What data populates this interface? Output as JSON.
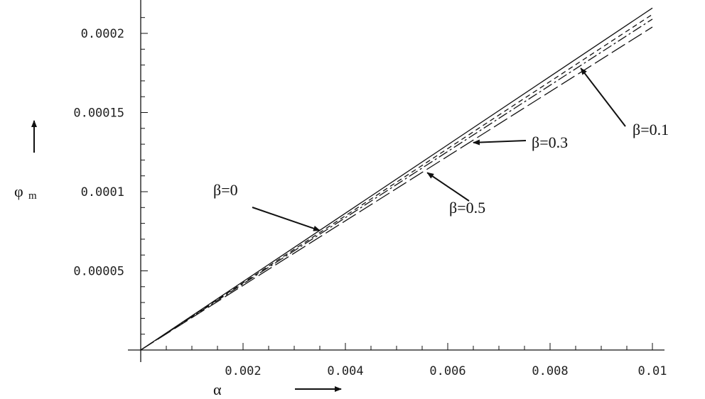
{
  "chart_data": {
    "type": "line",
    "xlabel": "α",
    "ylabel": "φ",
    "ylabel_subscript": "m",
    "xlim": [
      0,
      0.01
    ],
    "ylim": [
      0,
      0.00022
    ],
    "x_ticks": [
      "0.002",
      "0.004",
      "0.006",
      "0.008",
      "0.01"
    ],
    "x_tick_values": [
      0.002,
      0.004,
      0.006,
      0.008,
      0.01
    ],
    "y_ticks": [
      "0.00005",
      "0.0001",
      "0.00015",
      "0.0002"
    ],
    "y_tick_values": [
      5e-05,
      0.0001,
      0.00015,
      0.0002
    ],
    "grid": false,
    "series": [
      {
        "name": "β=0",
        "style": "solid",
        "x": [
          0,
          0.01
        ],
        "y": [
          0,
          0.000216
        ]
      },
      {
        "name": "β=0.1",
        "style": "short-dash",
        "x": [
          0,
          0.01
        ],
        "y": [
          0,
          0.000212
        ]
      },
      {
        "name": "β=0.3",
        "style": "dash-dot",
        "x": [
          0,
          0.01
        ],
        "y": [
          0,
          0.000209
        ]
      },
      {
        "name": "β=0.5",
        "style": "long-dash",
        "x": [
          0,
          0.01
        ],
        "y": [
          0,
          0.000204
        ]
      }
    ],
    "annotations": [
      {
        "text": "β=0",
        "points_to": [
          0.0035,
          7.55e-05
        ]
      },
      {
        "text": "β=0.1",
        "points_to": [
          0.0086,
          0.000178
        ]
      },
      {
        "text": "β=0.3",
        "points_to": [
          0.0065,
          0.000131
        ]
      },
      {
        "text": "β=0.5",
        "points_to": [
          0.0056,
          0.000112
        ]
      }
    ]
  }
}
